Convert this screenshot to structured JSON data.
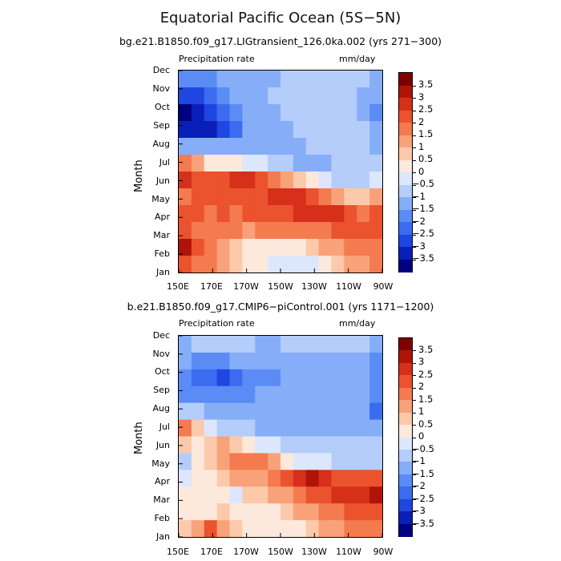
{
  "title": "Equatorial Pacific Ocean (5S−5N)",
  "colors": [
    "#000080",
    "#0a1fb8",
    "#1f46e0",
    "#3b6cf0",
    "#5b8cf5",
    "#86aef8",
    "#b4cdfb",
    "#dce7fd",
    "#fde8dc",
    "#fcc9aa",
    "#f9a27a",
    "#f47a50",
    "#ea532e",
    "#d6301a",
    "#b01408",
    "#7e0000"
  ],
  "colorbar": {
    "tick_labels": [
      "3.5",
      "3",
      "2.5",
      "2",
      "1.5",
      "1",
      "0.5",
      "0",
      "−0.5",
      "−1",
      "−1.5",
      "−2",
      "−2.5",
      "−3",
      "−3.5"
    ],
    "levels": [
      3.5,
      3,
      2.5,
      2,
      1.5,
      1,
      0.5,
      0,
      -0.5,
      -1,
      -1.5,
      -2,
      -2.5,
      -3,
      -3.5
    ]
  },
  "chart_data": [
    {
      "type": "heatmap",
      "title": "bg.e21.B1850.f09_g17.LIGtransient_126.0ka.002 (yrs 271−300)",
      "left_label": "Precipitation rate",
      "right_label": "mm/day",
      "ylabel": "Month",
      "xlabel": "",
      "x_ticks": [
        "150E",
        "170E",
        "170W",
        "150W",
        "130W",
        "110W",
        "90W"
      ],
      "x_values": [
        150,
        170,
        190,
        210,
        230,
        250,
        270
      ],
      "y_ticks": [
        "Dec",
        "Nov",
        "Oct",
        "Sep",
        "Aug",
        "Jul",
        "Jun",
        "May",
        "Apr",
        "Mar",
        "Feb",
        "Jan"
      ],
      "y_months": [
        12,
        11,
        10,
        9,
        8,
        7,
        6,
        5,
        4,
        3,
        2,
        1
      ],
      "rows": [
        [
          -1.6,
          -1.6,
          -1.7,
          -1.4,
          -1.2,
          -1.2,
          -1.2,
          -1.1,
          -1.0,
          -1.0,
          -1.0,
          -1.0,
          -1.0,
          -1.0,
          -1.0,
          -1.3
        ],
        [
          -2.6,
          -2.6,
          -2.2,
          -1.6,
          -1.3,
          -1.2,
          -1.1,
          -1.0,
          -1.0,
          -1.0,
          -1.0,
          -1.0,
          -1.0,
          -1.0,
          -1.2,
          -1.2
        ],
        [
          -3.6,
          -3.4,
          -3.0,
          -2.3,
          -1.8,
          -1.3,
          -1.3,
          -1.2,
          -1.0,
          -1.0,
          -1.0,
          -1.0,
          -1.0,
          -1.0,
          -1.1,
          -1.7
        ],
        [
          -3.4,
          -3.4,
          -3.1,
          -2.6,
          -2.1,
          -1.5,
          -1.4,
          -1.2,
          -1.2,
          -1.0,
          -1.0,
          -1.0,
          -1.0,
          -1.0,
          -1.0,
          -1.3
        ],
        [
          -1.1,
          -1.2,
          -1.5,
          -1.4,
          -1.3,
          -1.2,
          -1.2,
          -1.1,
          -1.1,
          -1.1,
          -1.0,
          -1.0,
          -1.0,
          -1.0,
          -1.0,
          -1.1
        ],
        [
          1.6,
          1.2,
          0.3,
          0.3,
          0.2,
          -0.2,
          -0.5,
          -0.7,
          -0.8,
          -1.1,
          -1.1,
          -1.1,
          -1.0,
          -1.0,
          -1.0,
          -1.0
        ],
        [
          2.6,
          2.2,
          2.1,
          2.2,
          2.6,
          2.8,
          2.4,
          1.9,
          1.4,
          0.9,
          0.4,
          -0.2,
          -0.6,
          -0.7,
          -0.8,
          -0.2
        ],
        [
          1.9,
          2.1,
          2.2,
          2.3,
          2.2,
          2.3,
          2.4,
          2.6,
          2.8,
          2.7,
          2.3,
          1.8,
          1.2,
          0.8,
          0.6,
          1.1
        ],
        [
          2.0,
          2.0,
          1.9,
          2.1,
          1.8,
          2.2,
          2.3,
          2.4,
          2.4,
          2.5,
          2.6,
          2.6,
          2.5,
          2.2,
          1.9,
          2.1
        ],
        [
          2.3,
          1.9,
          1.9,
          1.9,
          1.6,
          1.4,
          1.5,
          1.6,
          1.6,
          1.7,
          1.8,
          1.9,
          2.2,
          2.3,
          2.3,
          2.2
        ],
        [
          3.2,
          2.0,
          1.6,
          1.3,
          0.6,
          0.3,
          0.0,
          0.0,
          0.0,
          0.3,
          0.6,
          1.0,
          1.3,
          1.6,
          1.7,
          1.8
        ],
        [
          2.1,
          1.8,
          1.6,
          1.1,
          0.6,
          0.2,
          0.0,
          -0.1,
          -0.4,
          -0.4,
          -0.2,
          0.1,
          0.6,
          1.0,
          1.4,
          1.5
        ]
      ]
    },
    {
      "type": "heatmap",
      "title": "b.e21.B1850.f09_g17.CMIP6−piControl.001 (yrs 1171−1200)",
      "left_label": "Precipitation rate",
      "right_label": "mm/day",
      "ylabel": "Month",
      "xlabel": "",
      "x_ticks": [
        "150E",
        "170E",
        "170W",
        "150W",
        "130W",
        "110W",
        "90W"
      ],
      "x_values": [
        150,
        170,
        190,
        210,
        230,
        250,
        270
      ],
      "y_ticks": [
        "Dec",
        "Nov",
        "Oct",
        "Sep",
        "Aug",
        "Jul",
        "Jun",
        "May",
        "Apr",
        "Mar",
        "Feb",
        "Jan"
      ],
      "y_months": [
        12,
        11,
        10,
        9,
        8,
        7,
        6,
        5,
        4,
        3,
        2,
        1
      ],
      "rows": [
        [
          -1.1,
          -0.9,
          -0.8,
          -0.9,
          -1.0,
          -1.0,
          -1.1,
          -1.1,
          -1.0,
          -1.0,
          -1.0,
          -1.0,
          -1.0,
          -1.0,
          -1.0,
          -1.1
        ],
        [
          -1.5,
          -1.6,
          -1.7,
          -1.6,
          -1.4,
          -1.3,
          -1.4,
          -1.3,
          -1.3,
          -1.3,
          -1.2,
          -1.2,
          -1.2,
          -1.3,
          -1.3,
          -1.6
        ],
        [
          -2.0,
          -2.1,
          -2.3,
          -2.6,
          -2.3,
          -2.0,
          -1.7,
          -1.6,
          -1.5,
          -1.5,
          -1.5,
          -1.5,
          -1.5,
          -1.5,
          -1.5,
          -1.9
        ],
        [
          -1.6,
          -1.6,
          -1.9,
          -1.9,
          -1.8,
          -1.6,
          -1.5,
          -1.4,
          -1.3,
          -1.3,
          -1.4,
          -1.4,
          -1.4,
          -1.4,
          -1.4,
          -1.9
        ],
        [
          -0.6,
          -0.9,
          -1.3,
          -1.4,
          -1.4,
          -1.3,
          -1.3,
          -1.3,
          -1.3,
          -1.3,
          -1.3,
          -1.3,
          -1.3,
          -1.3,
          -1.3,
          -2.1
        ],
        [
          1.8,
          0.7,
          -0.2,
          -0.6,
          -0.7,
          -1.0,
          -1.1,
          -1.1,
          -1.2,
          -1.2,
          -1.2,
          -1.2,
          -1.2,
          -1.2,
          -1.2,
          -1.5
        ],
        [
          0.9,
          0.4,
          0.6,
          1.3,
          0.9,
          0.3,
          -0.1,
          -0.4,
          -0.6,
          -0.8,
          -0.8,
          -0.7,
          -0.7,
          -0.8,
          -0.8,
          -1.0
        ],
        [
          -0.8,
          0.3,
          0.9,
          1.4,
          1.6,
          1.6,
          1.5,
          1.1,
          0.4,
          -0.1,
          -0.4,
          -0.5,
          -0.6,
          -0.6,
          -0.6,
          -0.9
        ],
        [
          -0.4,
          0.2,
          0.3,
          0.6,
          1.0,
          1.2,
          1.2,
          1.6,
          2.2,
          2.6,
          3.3,
          2.8,
          2.4,
          2.2,
          2.1,
          2.2
        ],
        [
          0.1,
          0.2,
          0.2,
          0.3,
          -0.4,
          0.5,
          0.7,
          1.0,
          1.4,
          1.6,
          2.2,
          2.4,
          2.6,
          2.7,
          2.8,
          3.0
        ],
        [
          0.2,
          0.2,
          0.4,
          0.7,
          0.4,
          0.3,
          0.3,
          0.4,
          0.7,
          1.0,
          1.3,
          1.6,
          1.9,
          2.0,
          2.1,
          2.1
        ],
        [
          0.5,
          1.0,
          2.0,
          1.1,
          0.6,
          0.3,
          0.1,
          0.2,
          0.3,
          0.4,
          0.8,
          1.2,
          1.4,
          1.6,
          1.7,
          1.8
        ]
      ]
    }
  ]
}
